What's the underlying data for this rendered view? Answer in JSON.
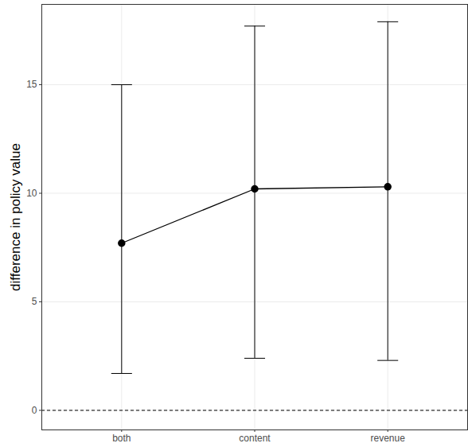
{
  "chart_data": {
    "type": "line",
    "ylabel": "difference in policy value",
    "categories": [
      "both",
      "content",
      "revenue"
    ],
    "values": [
      7.7,
      10.2,
      10.3
    ],
    "error_lower": [
      1.7,
      2.4,
      2.3
    ],
    "error_upper": [
      15.0,
      17.7,
      17.9
    ],
    "reference_line": 0,
    "ylim": [
      -0.9,
      18.7
    ],
    "yticks": [
      0,
      5,
      10,
      15
    ],
    "grid": true,
    "color": "#000000",
    "marker": "circle"
  }
}
